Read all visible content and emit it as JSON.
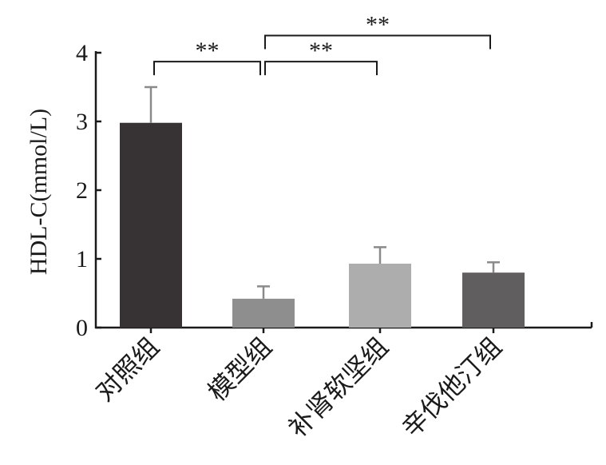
{
  "chart_data": {
    "type": "bar",
    "ylabel": "HDL-C(mmol/L)",
    "xlabel": "",
    "ylim": [
      0,
      4
    ],
    "yticks": [
      0,
      1,
      2,
      3,
      4
    ],
    "categories": [
      "对照组",
      "模型组",
      "补肾软坚组",
      "辛伐他汀组"
    ],
    "values": [
      2.98,
      0.42,
      0.93,
      0.8
    ],
    "errors": [
      0.52,
      0.18,
      0.24,
      0.15
    ],
    "colors": [
      "#373334",
      "#8e8e8e",
      "#adadad",
      "#605e5f"
    ],
    "grid": false,
    "significance": [
      {
        "from": 0,
        "to": 1,
        "label": "**",
        "level": 3.87
      },
      {
        "from": 1,
        "to": 2,
        "label": "**",
        "level": 3.87
      },
      {
        "from": 1,
        "to": 3,
        "label": "**",
        "level": 4.25
      }
    ]
  }
}
